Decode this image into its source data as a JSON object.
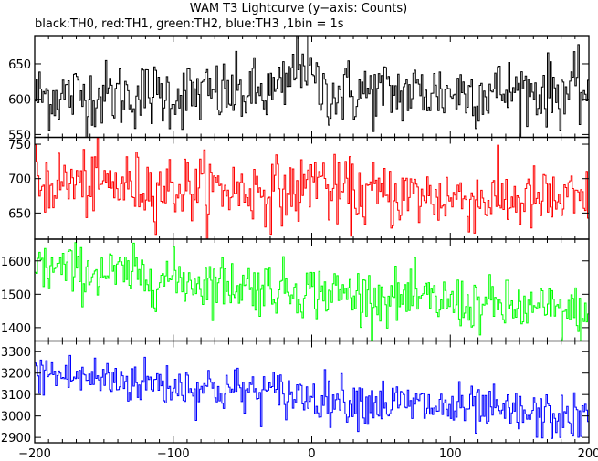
{
  "chart_data": {
    "type": "line",
    "title": "WAM T3 Lightcurve (y−axis: Counts)",
    "subtitle": "black:TH0, red:TH1, green:TH2, blue:TH3 ,1bin = 1s",
    "xlim": [
      -200,
      200
    ],
    "x_ticks": [
      -200,
      -100,
      0,
      100,
      200
    ],
    "x_tick_labels": [
      "−200",
      "−100",
      "0",
      "100",
      "200"
    ],
    "grid": false,
    "panels": [
      {
        "series": "TH0",
        "color": "#000000",
        "ylim": [
          546,
          690
        ],
        "y_ticks": [
          550,
          600,
          650
        ],
        "start": 605,
        "end": 612,
        "noise": 24,
        "features": [
          {
            "x": -8,
            "width": 6,
            "height": 50
          }
        ]
      },
      {
        "series": "TH1",
        "color": "#ff0000",
        "ylim": [
          612,
          760
        ],
        "y_ticks": [
          650,
          700,
          750
        ],
        "start": 695,
        "end": 665,
        "noise": 24,
        "features": [
          {
            "x": 3,
            "width": 4,
            "height": 30
          }
        ]
      },
      {
        "series": "TH2",
        "color": "#00ff00",
        "ylim": [
          1360,
          1665
        ],
        "y_ticks": [
          1400,
          1500,
          1600
        ],
        "start": 1580,
        "end": 1440,
        "noise": 40,
        "features": []
      },
      {
        "series": "TH3",
        "color": "#0000ff",
        "ylim": [
          2875,
          3350
        ],
        "y_ticks": [
          2900,
          3000,
          3100,
          3200,
          3300
        ],
        "start": 3200,
        "end": 2980,
        "noise": 55,
        "features": []
      }
    ]
  }
}
